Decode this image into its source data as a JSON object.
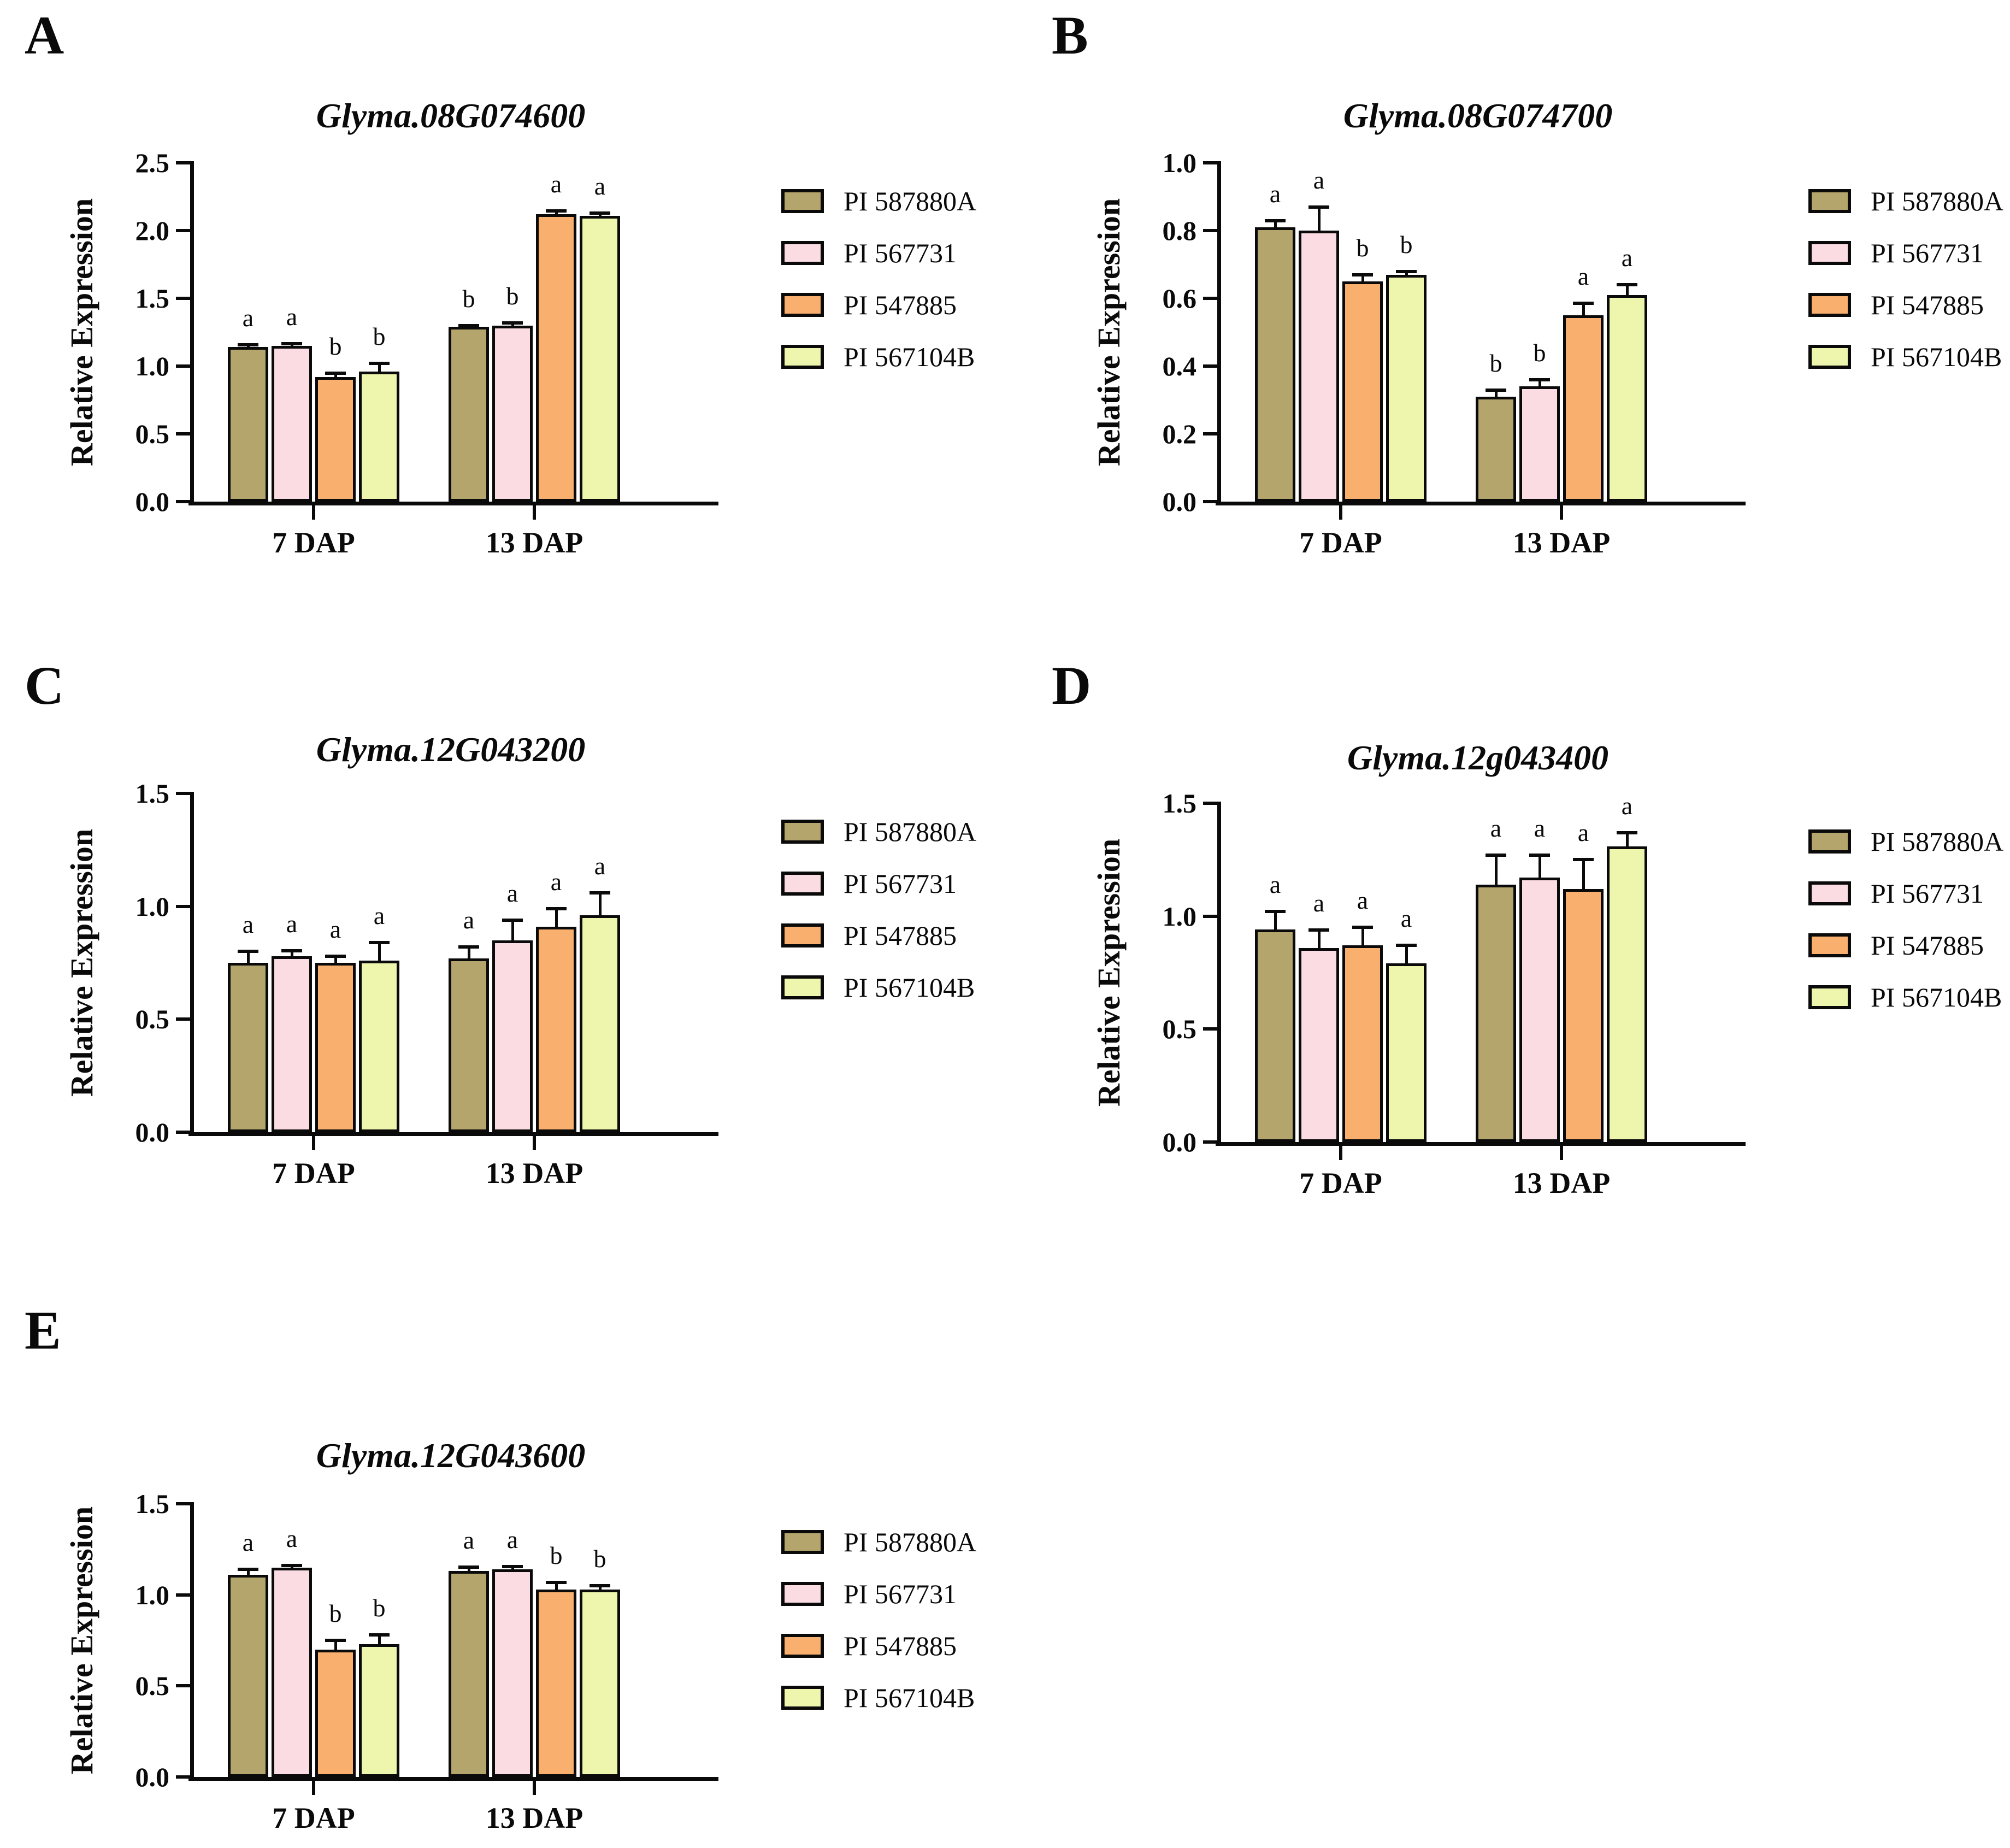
{
  "figure": {
    "description": "Five-panel bar chart figure of relative gene expression at 7 and 13 DAP for four soybean accessions",
    "axis_color": "#0a0a0a",
    "background": "#ffffff"
  },
  "legend": {
    "items": [
      {
        "label": "PI 587880A",
        "color": "#b4a56c"
      },
      {
        "label": "PI 567731",
        "color": "#fbdce2"
      },
      {
        "label": "PI 547885",
        "color": "#f9b06e"
      },
      {
        "label": "PI 567104B",
        "color": "#eef5ad"
      }
    ]
  },
  "chart_data": [
    {
      "panel_label": "A",
      "type": "bar",
      "title": "Glyma.08G074600",
      "xlabel": "",
      "ylabel": "Relative Expression",
      "ylim": [
        0,
        2.5
      ],
      "yticks": [
        0.0,
        0.5,
        1.0,
        1.5,
        2.0,
        2.5
      ],
      "categories": [
        "7 DAP",
        "13 DAP"
      ],
      "grid": false,
      "legend_position": "right",
      "series": [
        {
          "name": "PI 587880A",
          "values": [
            1.14,
            1.29
          ],
          "errors": [
            0.015,
            0.01
          ],
          "sig_letters": [
            "a",
            "b"
          ]
        },
        {
          "name": "PI 567731",
          "values": [
            1.15,
            1.3
          ],
          "errors": [
            0.015,
            0.02
          ],
          "sig_letters": [
            "a",
            "b"
          ]
        },
        {
          "name": "PI 547885",
          "values": [
            0.92,
            2.12
          ],
          "errors": [
            0.03,
            0.025
          ],
          "sig_letters": [
            "b",
            "a"
          ]
        },
        {
          "name": "PI 567104B",
          "values": [
            0.96,
            2.11
          ],
          "errors": [
            0.06,
            0.02
          ],
          "sig_letters": [
            "b",
            "a"
          ]
        }
      ]
    },
    {
      "panel_label": "B",
      "type": "bar",
      "title": "Glyma.08G074700",
      "xlabel": "",
      "ylabel": "Relative Expression",
      "ylim": [
        0,
        1.0
      ],
      "yticks": [
        0.0,
        0.2,
        0.4,
        0.6,
        0.8,
        1.0
      ],
      "categories": [
        "7 DAP",
        "13 DAP"
      ],
      "grid": false,
      "legend_position": "right",
      "series": [
        {
          "name": "PI 587880A",
          "values": [
            0.81,
            0.31
          ],
          "errors": [
            0.02,
            0.02
          ],
          "sig_letters": [
            "a",
            "b"
          ]
        },
        {
          "name": "PI 567731",
          "values": [
            0.8,
            0.34
          ],
          "errors": [
            0.07,
            0.02
          ],
          "sig_letters": [
            "a",
            "b"
          ]
        },
        {
          "name": "PI 547885",
          "values": [
            0.65,
            0.55
          ],
          "errors": [
            0.02,
            0.035
          ],
          "sig_letters": [
            "b",
            "a"
          ]
        },
        {
          "name": "PI 567104B",
          "values": [
            0.67,
            0.61
          ],
          "errors": [
            0.01,
            0.03
          ],
          "sig_letters": [
            "b",
            "a"
          ]
        }
      ]
    },
    {
      "panel_label": "C",
      "type": "bar",
      "title": "Glyma.12G043200",
      "xlabel": "",
      "ylabel": "Relative Expression",
      "ylim": [
        0,
        1.5
      ],
      "yticks": [
        0.0,
        0.5,
        1.0,
        1.5
      ],
      "categories": [
        "7 DAP",
        "13 DAP"
      ],
      "grid": false,
      "legend_position": "right",
      "series": [
        {
          "name": "PI 587880A",
          "values": [
            0.75,
            0.77
          ],
          "errors": [
            0.05,
            0.05
          ],
          "sig_letters": [
            "a",
            "a"
          ]
        },
        {
          "name": "PI 567731",
          "values": [
            0.78,
            0.85
          ],
          "errors": [
            0.025,
            0.09
          ],
          "sig_letters": [
            "a",
            "a"
          ]
        },
        {
          "name": "PI 547885",
          "values": [
            0.75,
            0.91
          ],
          "errors": [
            0.03,
            0.08
          ],
          "sig_letters": [
            "a",
            "a"
          ]
        },
        {
          "name": "PI 567104B",
          "values": [
            0.76,
            0.96
          ],
          "errors": [
            0.08,
            0.1
          ],
          "sig_letters": [
            "a",
            "a"
          ]
        }
      ]
    },
    {
      "panel_label": "D",
      "type": "bar",
      "title": "Glyma.12g043400",
      "xlabel": "",
      "ylabel": "Relative Expression",
      "ylim": [
        0,
        1.5
      ],
      "yticks": [
        0.0,
        0.5,
        1.0,
        1.5
      ],
      "categories": [
        "7 DAP",
        "13 DAP"
      ],
      "grid": false,
      "legend_position": "right",
      "series": [
        {
          "name": "PI 587880A",
          "values": [
            0.94,
            1.14
          ],
          "errors": [
            0.08,
            0.13
          ],
          "sig_letters": [
            "a",
            "a"
          ]
        },
        {
          "name": "PI 567731",
          "values": [
            0.86,
            1.17
          ],
          "errors": [
            0.08,
            0.1
          ],
          "sig_letters": [
            "a",
            "a"
          ]
        },
        {
          "name": "PI 547885",
          "values": [
            0.87,
            1.12
          ],
          "errors": [
            0.08,
            0.13
          ],
          "sig_letters": [
            "a",
            "a"
          ]
        },
        {
          "name": "PI 567104B",
          "values": [
            0.79,
            1.31
          ],
          "errors": [
            0.08,
            0.06
          ],
          "sig_letters": [
            "a",
            "a"
          ]
        }
      ]
    },
    {
      "panel_label": "E",
      "type": "bar",
      "title": "Glyma.12G043600",
      "xlabel": "",
      "ylabel": "Relative Expression",
      "ylim": [
        0,
        1.5
      ],
      "yticks": [
        0.0,
        0.5,
        1.0,
        1.5
      ],
      "categories": [
        "7 DAP",
        "13 DAP"
      ],
      "grid": false,
      "legend_position": "right",
      "series": [
        {
          "name": "PI 587880A",
          "values": [
            1.11,
            1.13
          ],
          "errors": [
            0.03,
            0.02
          ],
          "sig_letters": [
            "a",
            "a"
          ]
        },
        {
          "name": "PI 567731",
          "values": [
            1.15,
            1.14
          ],
          "errors": [
            0.012,
            0.015
          ],
          "sig_letters": [
            "a",
            "a"
          ]
        },
        {
          "name": "PI 547885",
          "values": [
            0.7,
            1.03
          ],
          "errors": [
            0.05,
            0.04
          ],
          "sig_letters": [
            "b",
            "b"
          ]
        },
        {
          "name": "PI 567104B",
          "values": [
            0.73,
            1.03
          ],
          "errors": [
            0.05,
            0.02
          ],
          "sig_letters": [
            "b",
            "b"
          ]
        }
      ]
    }
  ]
}
